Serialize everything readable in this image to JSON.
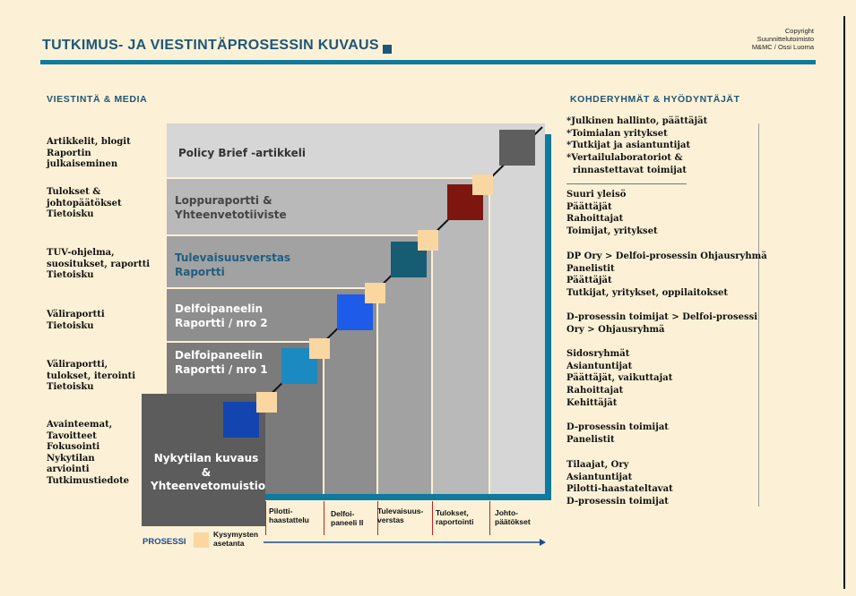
{
  "header": {
    "title": "TUTKIMUS- JA VIESTINTÄPROSESSIN KUVAUS",
    "copyright_lines": [
      "Copyright",
      "Suunnittelutoimisto",
      "M&MC / Ossi Luoma"
    ]
  },
  "left_section": {
    "heading": "VIESTINTÄ & MEDIA",
    "items": [
      {
        "lines": [
          "Artikkelit, blogit",
          "Raportin julkaiseminen"
        ]
      },
      {
        "lines": [
          "Tulokset &",
          "johtopäätökset",
          "Tietoisku"
        ]
      },
      {
        "lines": [
          "TUV-ohjelma,",
          "suositukset, raportti",
          "Tietoisku"
        ]
      },
      {
        "lines": [
          "Väliraportti",
          "Tietoisku"
        ]
      },
      {
        "lines": [
          "Väliraportti,",
          "tulokset, iterointi",
          "Tietoisku"
        ]
      },
      {
        "lines": [
          "Avainteemat,",
          "Tavoitteet",
          "Fokusointi",
          "Nykytilan",
          "arviointi",
          "Tutkimustiedote"
        ]
      }
    ]
  },
  "right_section": {
    "heading": "KOHDERYHMÄT & HYÖDYNTÄJÄT",
    "groups": [
      {
        "lines": [
          "*Julkinen hallinto, päättäjät",
          "*Toimialan yritykset",
          "*Tutkijat ja asiantuntijat",
          "*Vertailulaboratoriot &",
          "  rinnastettavat toimijat"
        ]
      },
      {
        "lines": [
          "Suuri yleisö",
          "Päättäjät",
          "Rahoittajat",
          "Toimijat, yritykset"
        ]
      },
      {
        "lines": [
          "DP Ory > Delfoi-prosessin Ohjausryhmä",
          "Panelistit",
          "Päättäjät",
          "Tutkijat, yritykset, oppilaitokset"
        ]
      },
      {
        "lines": [
          "D-prosessin toimijat > Delfoi-prosessi",
          "Ory > Ohjausryhmä"
        ]
      },
      {
        "lines": [
          "Sidosryhmät",
          "Asiantuntijat",
          "Päättäjät, vaikuttajat",
          "Rahoittajat",
          "Kehittäjät"
        ]
      },
      {
        "lines": [
          "D-prosessin toimijat",
          "Panelistit"
        ]
      },
      {
        "lines": [
          "Tilaajat, Ory",
          "Asiantuntijat",
          "Pilotti-haastateltavat",
          "D-prosessin toimijat"
        ]
      }
    ]
  },
  "diagram": {
    "panels": [
      {
        "lines": [
          "Policy Brief -artikkeli"
        ],
        "text_color": "#333333"
      },
      {
        "lines": [
          "Loppuraportti &",
          "Yhteenvetotiiviste"
        ],
        "text_color": "#444444"
      },
      {
        "lines": [
          "Tulevaisuusverstas",
          "Raportti"
        ],
        "text_color": "#1F5D80"
      },
      {
        "lines": [
          "Delfoipaneelin",
          "Raportti / nro 2"
        ],
        "text_color": "#FFFFFF"
      },
      {
        "lines": [
          "Delfoipaneelin",
          "Raportti / nro 1"
        ],
        "text_color": "#FFFFFF"
      },
      {
        "lines": [
          "Nykytilan kuvaus &",
          "Yhteenvetomuistio"
        ],
        "text_color": "#FFFFFF"
      }
    ],
    "squares": [
      {
        "name": "nykytila",
        "color": "#1444B0"
      },
      {
        "name": "delfoi-1",
        "color": "#1A8AC0"
      },
      {
        "name": "delfoi-2",
        "color": "#1E5BE8"
      },
      {
        "name": "tulevaisuus",
        "color": "#165C72"
      },
      {
        "name": "loppuraportti",
        "color": "#7E1610"
      },
      {
        "name": "policy-brief",
        "color": "#5E5E5E"
      }
    ],
    "x_labels": [
      [
        "Pilotti-",
        "haastattelu"
      ],
      [
        "Delfoi-",
        "paneeli II"
      ],
      [
        "Tulevaisuus-",
        "verstas"
      ],
      [
        "Tulokset,",
        "raportointi"
      ],
      [
        "Johto-",
        "päätökset"
      ]
    ],
    "prosessi_label": "PROSESSI",
    "legend_label": [
      "Kysymysten",
      "asetanta"
    ],
    "colors": {
      "accent": "#0D7A9E",
      "peach": "#FAD7A0",
      "arrow": "#1B4C8F"
    }
  }
}
